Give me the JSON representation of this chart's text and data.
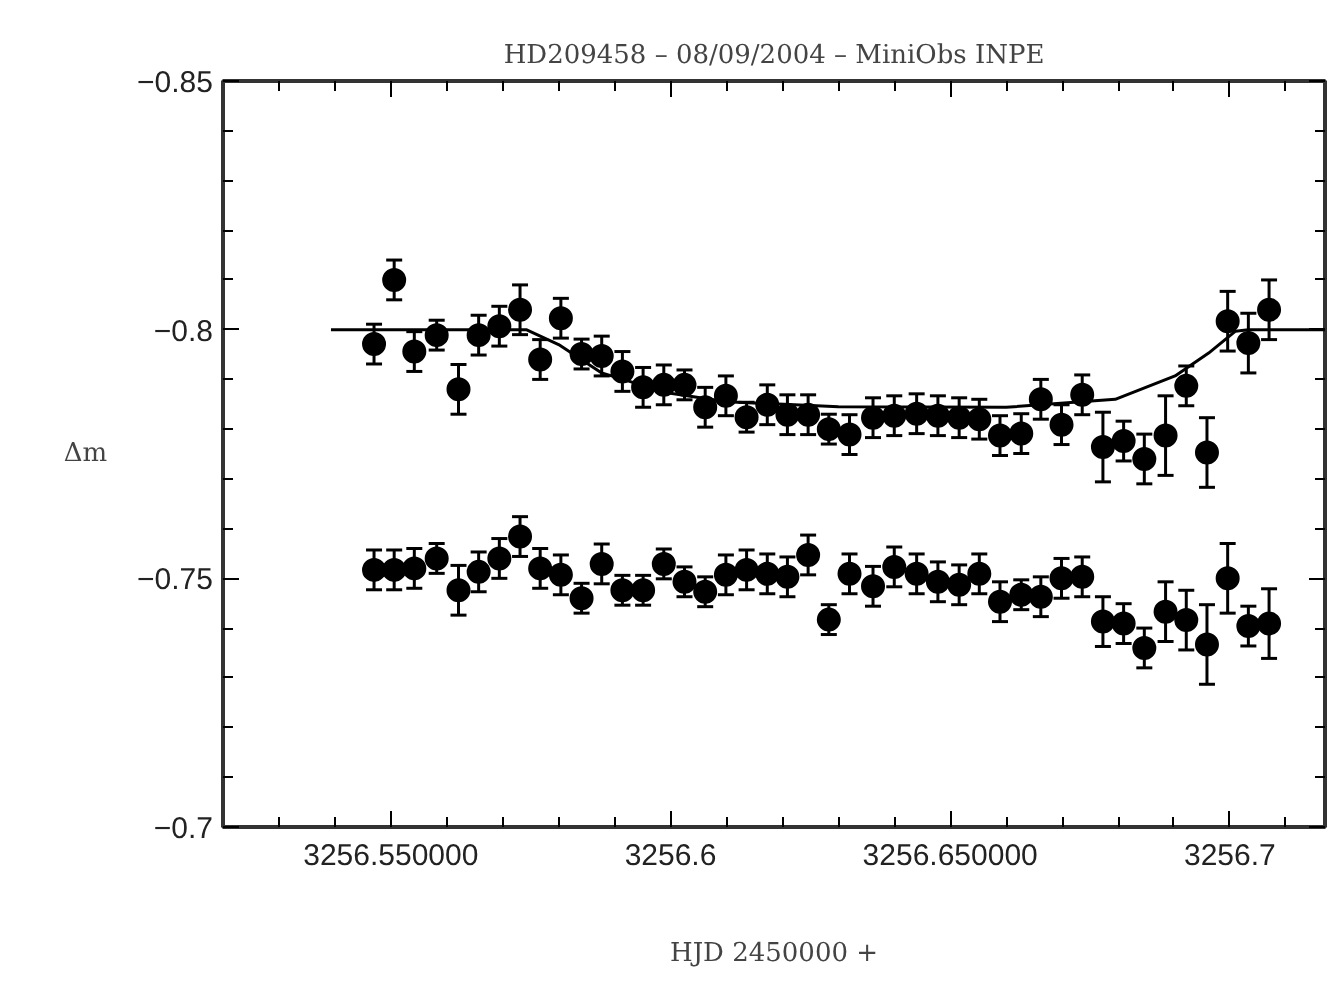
{
  "chart_data": {
    "type": "scatter",
    "title": "HD209458 – 08/09/2004 – MiniObs INPE",
    "xlabel": "HJD 2450000 +",
    "ylabel": "Δm",
    "x": [
      3256.547,
      3256.5506,
      3256.5542,
      3256.5582,
      3256.5621,
      3256.5657,
      3256.5694,
      3256.5731,
      3256.5767,
      3256.5804,
      3256.5841,
      3256.5877,
      3256.5914,
      3256.5951,
      3256.5988,
      3256.6025,
      3256.6062,
      3256.6099,
      3256.6136,
      3256.6173,
      3256.6209,
      3256.6246,
      3256.6283,
      3256.632,
      3256.6362,
      3256.64,
      3256.644,
      3256.6478,
      3256.6516,
      3256.6552,
      3256.6589,
      3256.6627,
      3256.6662,
      3256.6699,
      3256.6736,
      3256.6773,
      3256.681,
      3256.6847,
      3256.6885,
      3256.6922,
      3256.6959,
      3256.6996,
      3256.7033,
      3256.707
    ],
    "series": [
      {
        "color": "#000000",
        "values": [
          -0.7971,
          -0.81,
          -0.7956,
          -0.7989,
          -0.788,
          -0.7989,
          -0.8007,
          -0.804,
          -0.794,
          -0.8023,
          -0.7951,
          -0.7947,
          -0.7916,
          -0.7884,
          -0.7889,
          -0.7889,
          -0.7844,
          -0.7867,
          -0.7824,
          -0.7849,
          -0.7829,
          -0.7829,
          -0.78,
          -0.7789,
          -0.7823,
          -0.7827,
          -0.7831,
          -0.7827,
          -0.7823,
          -0.782,
          -0.7787,
          -0.7791,
          -0.786,
          -0.7809,
          -0.7869,
          -0.7764,
          -0.7776,
          -0.774,
          -0.7787,
          -0.7887,
          -0.7753,
          -0.8017,
          -0.7973,
          -0.804
        ],
        "errors": [
          0.004,
          0.004,
          0.004,
          0.003,
          0.005,
          0.004,
          0.004,
          0.005,
          0.004,
          0.004,
          0.003,
          0.004,
          0.004,
          0.004,
          0.004,
          0.003,
          0.004,
          0.004,
          0.003,
          0.004,
          0.004,
          0.004,
          0.003,
          0.004,
          0.004,
          0.004,
          0.004,
          0.004,
          0.004,
          0.004,
          0.004,
          0.004,
          0.004,
          0.004,
          0.004,
          0.007,
          0.004,
          0.005,
          0.008,
          0.004,
          0.007,
          0.006,
          0.006,
          0.006
        ]
      },
      {
        "color": "#000000",
        "values": [
          -0.7517,
          -0.7517,
          -0.752,
          -0.754,
          -0.7476,
          -0.7513,
          -0.754,
          -0.7584,
          -0.752,
          -0.7507,
          -0.746,
          -0.7529,
          -0.7476,
          -0.7476,
          -0.7529,
          -0.7493,
          -0.7473,
          -0.7507,
          -0.7517,
          -0.7509,
          -0.7503,
          -0.7547,
          -0.7417,
          -0.7509,
          -0.7484,
          -0.7523,
          -0.7509,
          -0.7493,
          -0.7487,
          -0.7509,
          -0.7453,
          -0.7467,
          -0.7463,
          -0.75,
          -0.7503,
          -0.7413,
          -0.7409,
          -0.736,
          -0.7433,
          -0.7416,
          -0.7367,
          -0.75,
          -0.7404,
          -0.7409
        ],
        "errors": [
          0.004,
          0.004,
          0.004,
          0.003,
          0.005,
          0.004,
          0.004,
          0.004,
          0.004,
          0.004,
          0.003,
          0.004,
          0.003,
          0.003,
          0.003,
          0.003,
          0.003,
          0.004,
          0.004,
          0.004,
          0.004,
          0.004,
          0.003,
          0.004,
          0.004,
          0.004,
          0.004,
          0.004,
          0.004,
          0.004,
          0.004,
          0.003,
          0.004,
          0.004,
          0.004,
          0.005,
          0.004,
          0.004,
          0.006,
          0.006,
          0.008,
          0.007,
          0.004,
          0.007
        ]
      },
      {
        "type": "line",
        "marker": "none",
        "color": "#000000",
        "x": [
          3256.5393,
          3256.5742,
          3256.58,
          3256.5877,
          3256.5994,
          3256.61,
          3256.63,
          3256.66,
          3256.6795,
          3256.6902,
          3256.6962,
          3256.701,
          3256.7033,
          3256.717
        ],
        "values": [
          -0.8,
          -0.8,
          -0.797,
          -0.7913,
          -0.7873,
          -0.7855,
          -0.7845,
          -0.7844,
          -0.786,
          -0.7907,
          -0.7953,
          -0.7997,
          -0.8,
          -0.8
        ]
      }
    ],
    "marker": "circle",
    "grid": false,
    "xlim": [
      3256.52,
      3256.717
    ],
    "ylim": [
      -0.7,
      -0.85
    ],
    "xticks": [
      {
        "value": 3256.53,
        "label": null
      },
      {
        "value": 3256.54,
        "label": null
      },
      {
        "value": 3256.55,
        "label": "3256.550000"
      },
      {
        "value": 3256.56,
        "label": null
      },
      {
        "value": 3256.57,
        "label": null
      },
      {
        "value": 3256.58,
        "label": null
      },
      {
        "value": 3256.59,
        "label": null
      },
      3256.6,
      {
        "value": 3256.61,
        "label": null
      },
      {
        "value": 3256.62,
        "label": null
      },
      {
        "value": 3256.63,
        "label": null
      },
      {
        "value": 3256.64,
        "label": null
      },
      {
        "value": 3256.65,
        "label": "3256.650000"
      },
      {
        "value": 3256.66,
        "label": null
      },
      {
        "value": 3256.67,
        "label": null
      },
      {
        "value": 3256.68,
        "label": null
      },
      {
        "value": 3256.69,
        "label": null
      },
      3256.7,
      {
        "value": 3256.71,
        "label": null
      }
    ],
    "yticks": [
      -0.85,
      {
        "value": -0.84,
        "label": null
      },
      {
        "value": -0.83,
        "label": null
      },
      {
        "value": -0.82,
        "label": null
      },
      {
        "value": -0.81,
        "label": null
      },
      -0.8,
      {
        "value": -0.79,
        "label": null
      },
      {
        "value": -0.78,
        "label": null
      },
      {
        "value": -0.77,
        "label": null
      },
      {
        "value": -0.76,
        "label": null
      },
      -0.75,
      {
        "value": -0.74,
        "label": null
      },
      {
        "value": -0.73,
        "label": null
      },
      {
        "value": -0.72,
        "label": null
      },
      {
        "value": -0.71,
        "label": null
      },
      -0.7
    ]
  }
}
